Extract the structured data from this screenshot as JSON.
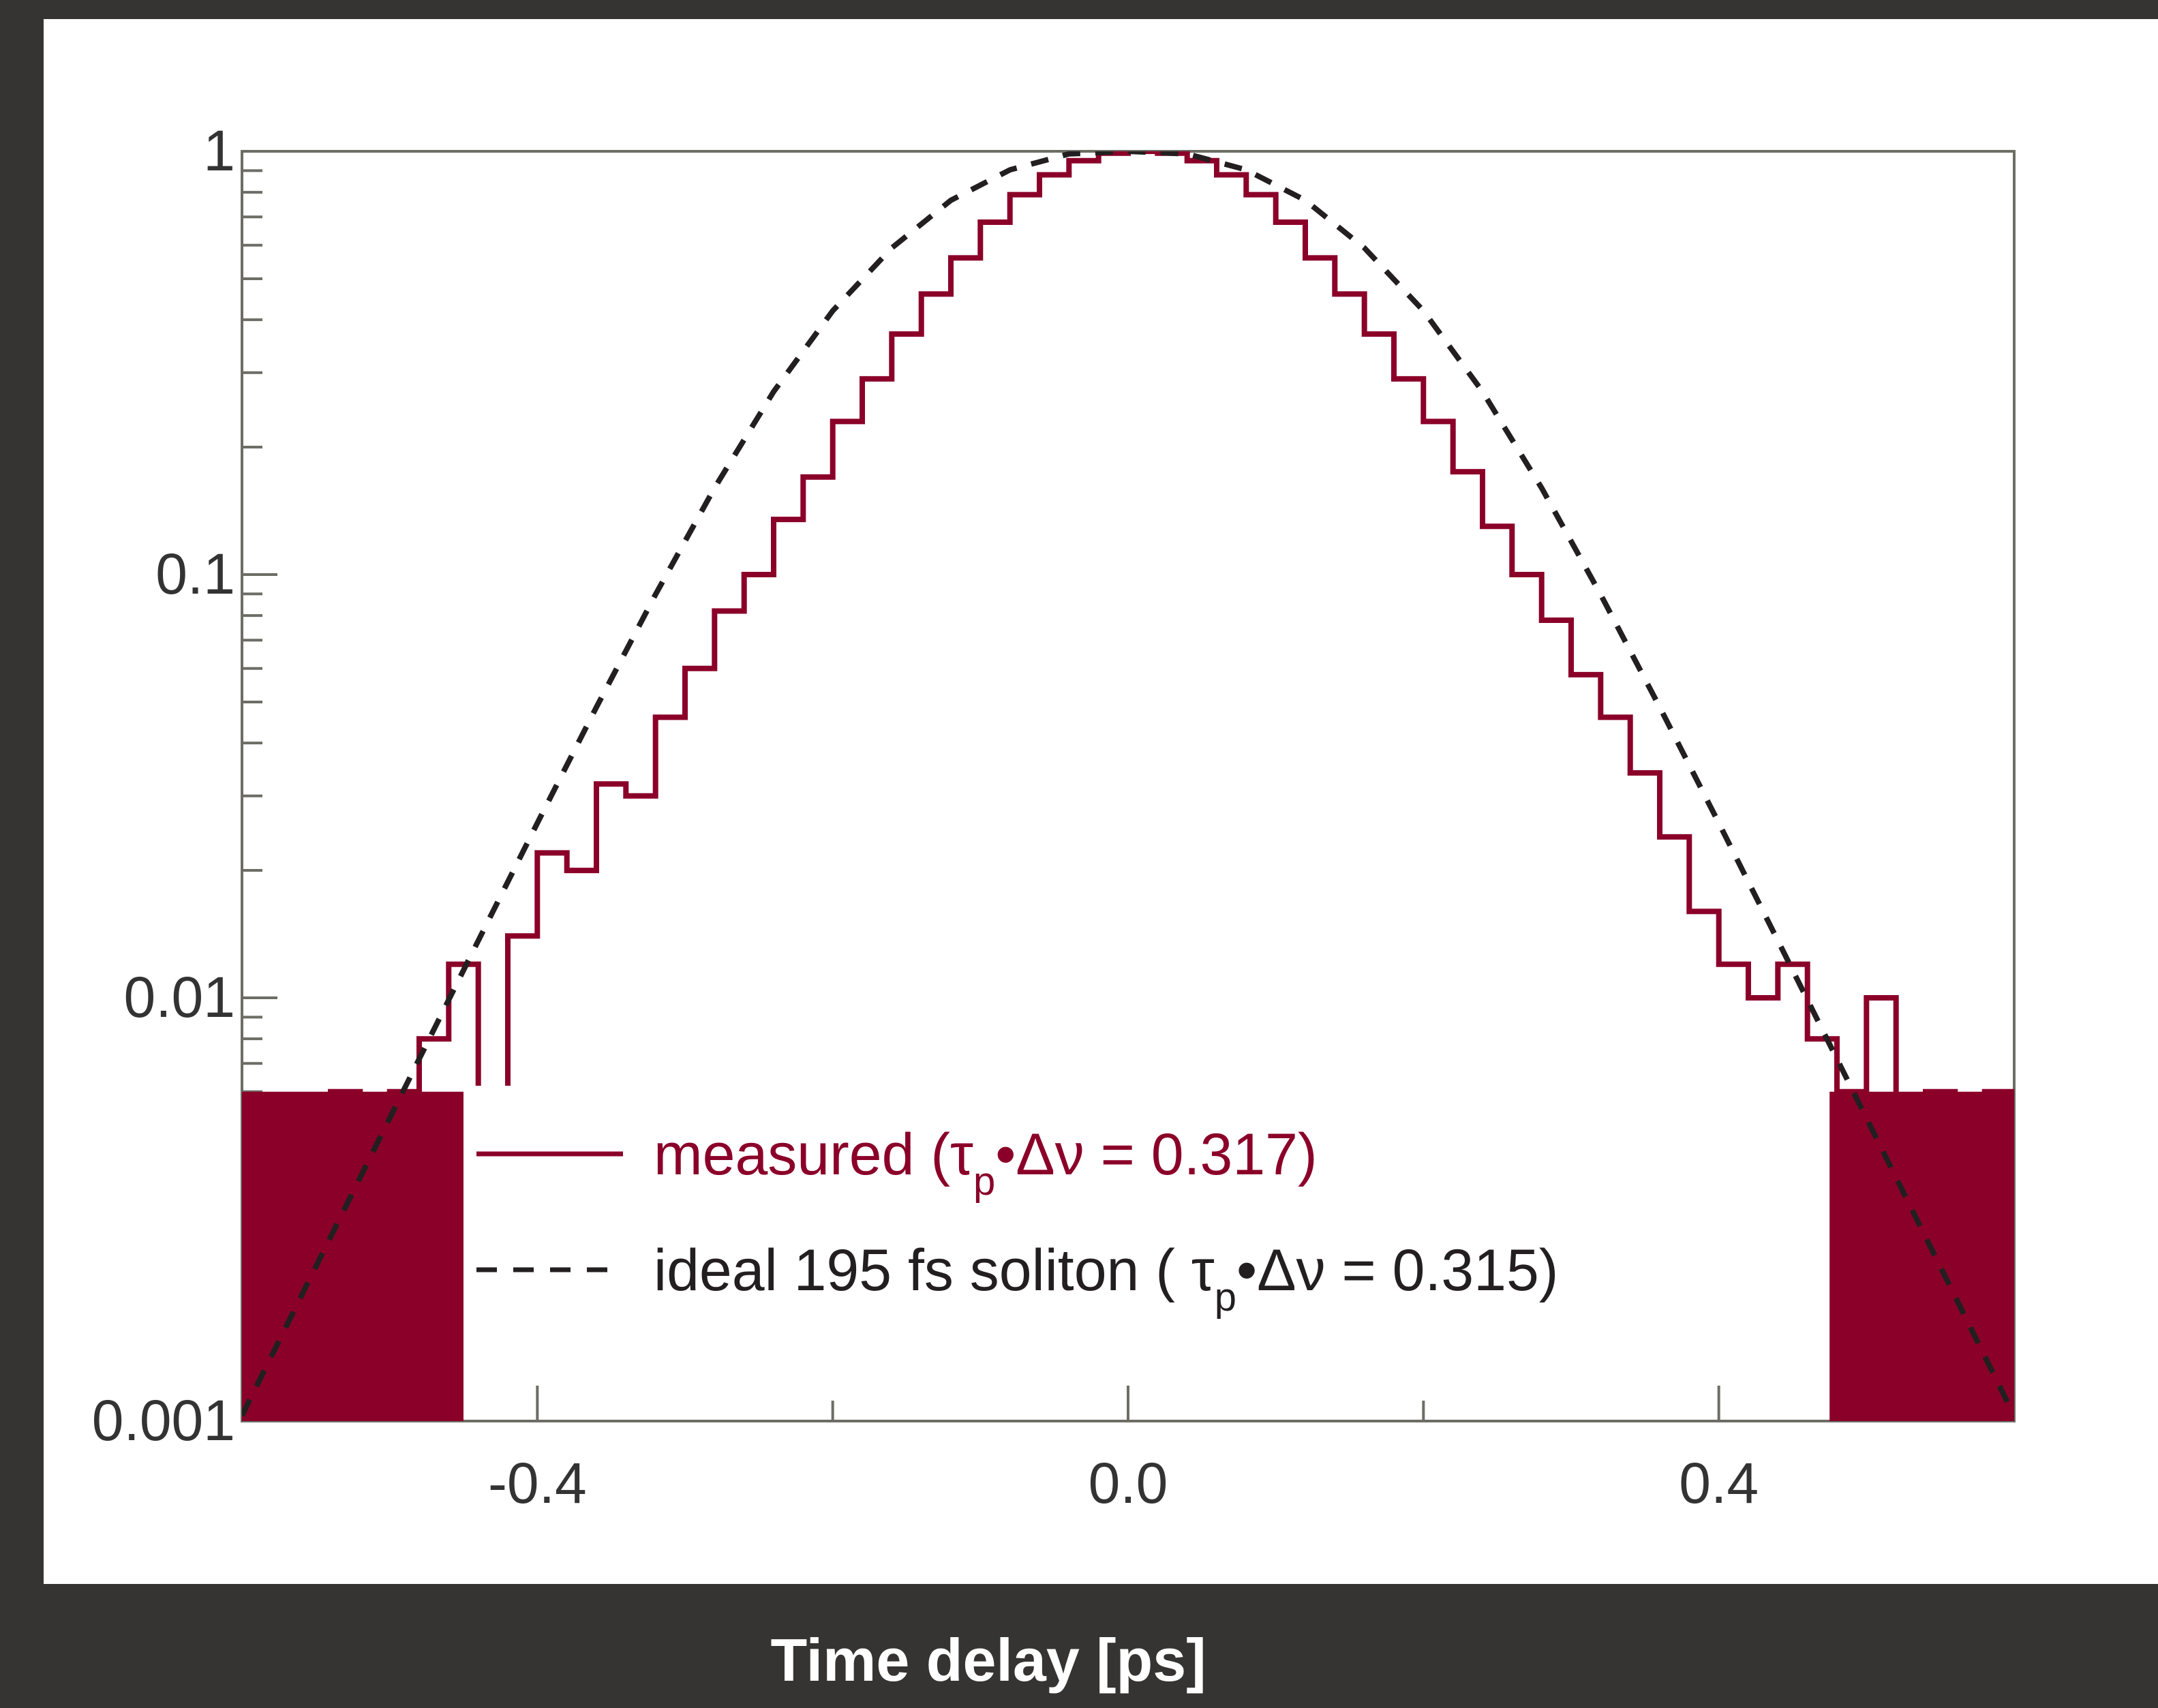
{
  "chart_data": {
    "type": "line",
    "xlabel": "Time delay [ps]",
    "ylabel": "",
    "xlim": [
      -0.6,
      0.6
    ],
    "ylim": [
      0.001,
      1
    ],
    "yscale": "log",
    "grid": false,
    "legend_placement": "bottom-center",
    "x_ticks": [
      "-0.4",
      "0.0",
      "0.4"
    ],
    "y_ticks": [
      "0.001",
      "0.01",
      "0.1",
      "1"
    ],
    "colors": {
      "measured": "#8b0029",
      "ideal": "#231f20",
      "axis": "#6d6d66",
      "background": "#353432"
    },
    "series": [
      {
        "name": "measured",
        "legend_pre": "measured (τ",
        "legend_sub": "p",
        "legend_post": "•Δν = 0.317)",
        "style": "solid",
        "x": [
          -0.6,
          -0.58,
          -0.56,
          -0.54,
          -0.52,
          -0.5,
          -0.48,
          -0.46,
          -0.44,
          -0.42,
          -0.4,
          -0.38,
          -0.36,
          -0.34,
          -0.32,
          -0.3,
          -0.28,
          -0.26,
          -0.24,
          -0.22,
          -0.2,
          -0.18,
          -0.16,
          -0.14,
          -0.12,
          -0.1,
          -0.08,
          -0.06,
          -0.04,
          -0.02,
          0.0,
          0.02,
          0.04,
          0.06,
          0.08,
          0.1,
          0.12,
          0.14,
          0.16,
          0.18,
          0.2,
          0.22,
          0.24,
          0.26,
          0.28,
          0.3,
          0.32,
          0.34,
          0.36,
          0.38,
          0.4,
          0.42,
          0.44,
          0.46,
          0.48,
          0.5,
          0.52,
          0.54,
          0.56,
          0.58,
          0.6
        ],
        "y": [
          0.002,
          0.004,
          0.001,
          0.006,
          0.002,
          0.006,
          0.008,
          0.012,
          0.006,
          0.014,
          0.022,
          0.02,
          0.032,
          0.03,
          0.046,
          0.06,
          0.082,
          0.1,
          0.135,
          0.17,
          0.23,
          0.29,
          0.37,
          0.46,
          0.56,
          0.68,
          0.79,
          0.88,
          0.95,
          0.99,
          1.0,
          0.99,
          0.95,
          0.88,
          0.79,
          0.68,
          0.56,
          0.46,
          0.37,
          0.29,
          0.23,
          0.175,
          0.13,
          0.1,
          0.078,
          0.058,
          0.046,
          0.034,
          0.024,
          0.016,
          0.012,
          0.01,
          0.012,
          0.008,
          0.006,
          0.01,
          0.004,
          0.006,
          0.002,
          0.006,
          0.004
        ],
        "noise_band": {
          "y_low": 0.001,
          "y_high": 0.006,
          "x_ranges": [
            [
              -0.6,
              -0.45
            ],
            [
              0.475,
              0.6
            ]
          ]
        }
      },
      {
        "name": "ideal 195 fs soliton",
        "legend_pre": "ideal 195 fs soliton ( τ",
        "legend_sub": "p",
        "legend_post": "•Δν = 0.315)",
        "style": "dashed",
        "x": [
          -0.6,
          -0.56,
          -0.52,
          -0.48,
          -0.44,
          -0.4,
          -0.36,
          -0.32,
          -0.28,
          -0.24,
          -0.2,
          -0.16,
          -0.12,
          -0.08,
          -0.04,
          0.0,
          0.04,
          0.08,
          0.12,
          0.16,
          0.2,
          0.24,
          0.28,
          0.32,
          0.36,
          0.4,
          0.44,
          0.48,
          0.52,
          0.56,
          0.6
        ],
        "y": [
          0.00103,
          0.00197,
          0.00376,
          0.00717,
          0.01365,
          0.02587,
          0.0486,
          0.0897,
          0.1602,
          0.2705,
          0.42,
          0.591,
          0.766,
          0.904,
          0.986,
          1.0,
          0.986,
          0.904,
          0.766,
          0.591,
          0.42,
          0.2705,
          0.1602,
          0.0897,
          0.0486,
          0.02587,
          0.01365,
          0.00717,
          0.00376,
          0.00197,
          0.00103
        ]
      }
    ]
  }
}
